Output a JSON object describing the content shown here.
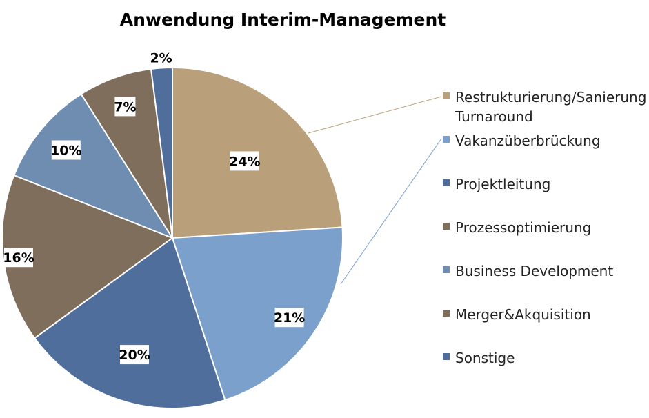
{
  "chart_data": {
    "type": "pie",
    "title": "Anwendung Interim-Management",
    "legend_position": "right",
    "slices": [
      {
        "label": "Restrukturierung/Sanierung Turnaround",
        "label_lines": [
          "Restrukturierung/Sanierung",
          "Turnaround"
        ],
        "value": 24,
        "display": "24%",
        "color": "#B9A07B"
      },
      {
        "label": "Vakanzüberbrückung",
        "label_lines": [
          "Vakanzüberbrückung"
        ],
        "value": 21,
        "display": "21%",
        "color": "#7AA0CB"
      },
      {
        "label": "Projektleitung",
        "label_lines": [
          "Projektleitung"
        ],
        "value": 20,
        "display": "20%",
        "color": "#4F6E9B"
      },
      {
        "label": "Prozessoptimierung",
        "label_lines": [
          "Prozessoptimierung"
        ],
        "value": 16,
        "display": "16%",
        "color": "#7F6E5C"
      },
      {
        "label": "Business Development",
        "label_lines": [
          "Business Development"
        ],
        "value": 10,
        "display": "10%",
        "color": "#6F8DB1"
      },
      {
        "label": "Merger&Akquisition",
        "label_lines": [
          "Merger&Akquisition"
        ],
        "value": 7,
        "display": "7%",
        "color": "#7F6E5C"
      },
      {
        "label": "Sonstige",
        "label_lines": [
          "Sonstige"
        ],
        "value": 2,
        "display": "2%",
        "color": "#4F6E9B"
      }
    ]
  }
}
